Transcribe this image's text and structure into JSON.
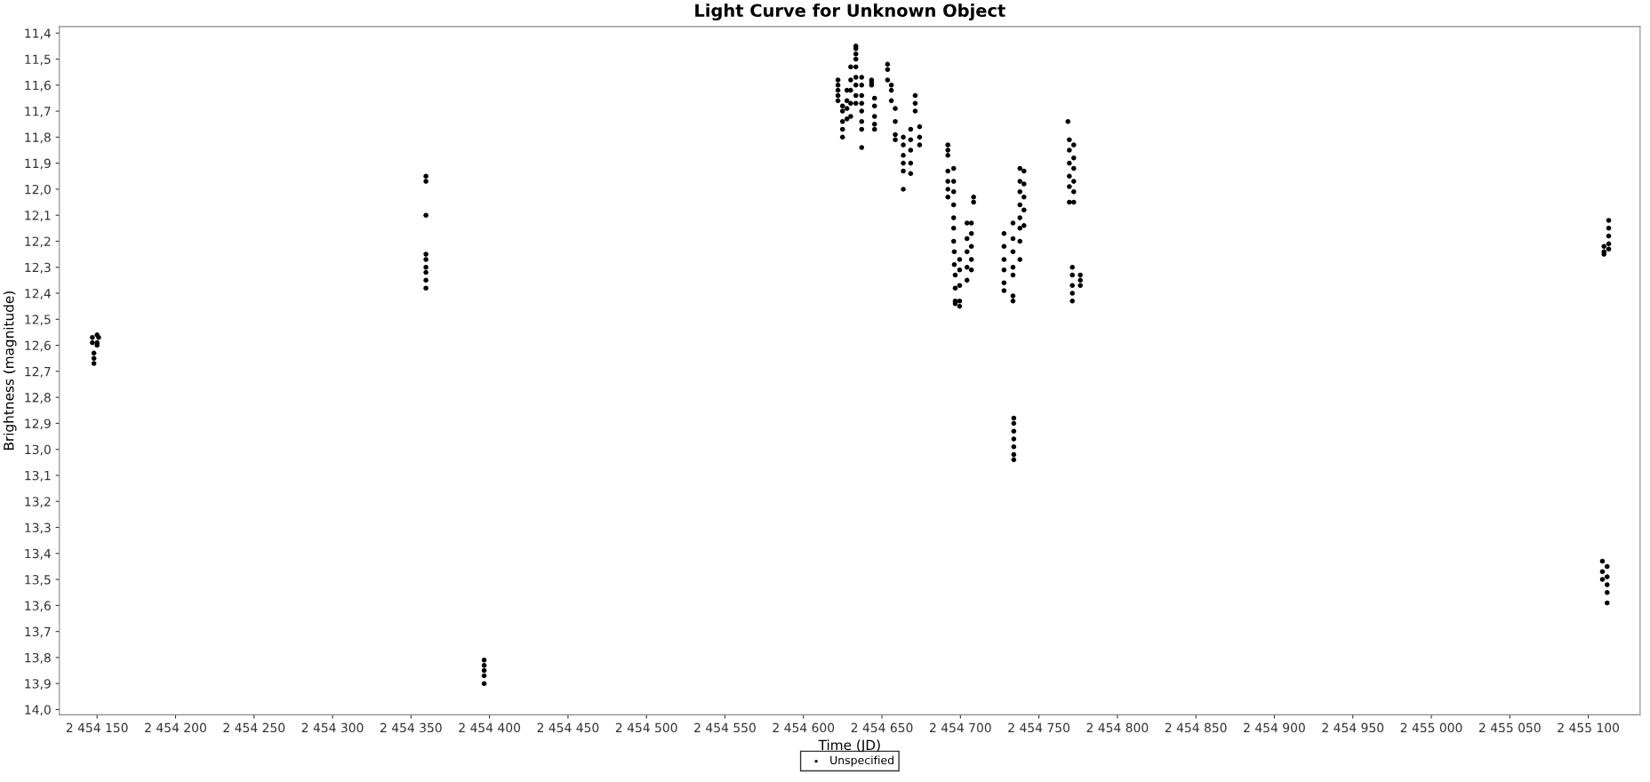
{
  "chart_data": {
    "type": "scatter",
    "title": "Light Curve for Unknown Object",
    "xlabel": "Time (JD)",
    "ylabel": "Brightness (magnitude)",
    "xlim": [
      2454126,
      2455133
    ],
    "ylim": [
      14.02,
      11.375
    ],
    "xticks": [
      {
        "value": 2454150,
        "label": "2 454 150"
      },
      {
        "value": 2454200,
        "label": "2 454 200"
      },
      {
        "value": 2454250,
        "label": "2 454 250"
      },
      {
        "value": 2454300,
        "label": "2 454 300"
      },
      {
        "value": 2454350,
        "label": "2 454 350"
      },
      {
        "value": 2454400,
        "label": "2 454 400"
      },
      {
        "value": 2454450,
        "label": "2 454 450"
      },
      {
        "value": 2454500,
        "label": "2 454 500"
      },
      {
        "value": 2454550,
        "label": "2 454 550"
      },
      {
        "value": 2454600,
        "label": "2 454 600"
      },
      {
        "value": 2454650,
        "label": "2 454 650"
      },
      {
        "value": 2454700,
        "label": "2 454 700"
      },
      {
        "value": 2454750,
        "label": "2 454 750"
      },
      {
        "value": 2454800,
        "label": "2 454 800"
      },
      {
        "value": 2454850,
        "label": "2 454 850"
      },
      {
        "value": 2454900,
        "label": "2 454 900"
      },
      {
        "value": 2454950,
        "label": "2 454 950"
      },
      {
        "value": 2455000,
        "label": "2 455 000"
      },
      {
        "value": 2455050,
        "label": "2 455 050"
      },
      {
        "value": 2455100,
        "label": "2 455 100"
      }
    ],
    "yticks": [
      {
        "value": 11.4,
        "label": "11,4"
      },
      {
        "value": 11.5,
        "label": "11,5"
      },
      {
        "value": 11.6,
        "label": "11,6"
      },
      {
        "value": 11.7,
        "label": "11,7"
      },
      {
        "value": 11.8,
        "label": "11,8"
      },
      {
        "value": 11.9,
        "label": "11,9"
      },
      {
        "value": 12.0,
        "label": "12,0"
      },
      {
        "value": 12.1,
        "label": "12,1"
      },
      {
        "value": 12.2,
        "label": "12,2"
      },
      {
        "value": 12.3,
        "label": "12,3"
      },
      {
        "value": 12.4,
        "label": "12,4"
      },
      {
        "value": 12.5,
        "label": "12,5"
      },
      {
        "value": 12.6,
        "label": "12,6"
      },
      {
        "value": 12.7,
        "label": "12,7"
      },
      {
        "value": 12.8,
        "label": "12,8"
      },
      {
        "value": 12.9,
        "label": "12,9"
      },
      {
        "value": 13.0,
        "label": "13,0"
      },
      {
        "value": 13.1,
        "label": "13,1"
      },
      {
        "value": 13.2,
        "label": "13,2"
      },
      {
        "value": 13.3,
        "label": "13,3"
      },
      {
        "value": 13.4,
        "label": "13,4"
      },
      {
        "value": 13.5,
        "label": "13,5"
      },
      {
        "value": 13.6,
        "label": "13,6"
      },
      {
        "value": 13.7,
        "label": "13,7"
      },
      {
        "value": 13.8,
        "label": "13,8"
      },
      {
        "value": 13.9,
        "label": "13,9"
      },
      {
        "value": 14.0,
        "label": "14,0"
      }
    ],
    "grid": false,
    "legend": "bottom",
    "marker": "circle",
    "series": [
      {
        "name": "Unspecified",
        "color": "#000000",
        "x": [
          2454147,
          2454147,
          2454148,
          2454148,
          2454148,
          2454150,
          2454151,
          2454150,
          2454150,
          2454359.5,
          2454359.5,
          2454359.5,
          2454359.5,
          2454359.5,
          2454359.5,
          2454359.5,
          2454359.5,
          2454359.5,
          2454396.6,
          2454396.6,
          2454396.6,
          2454396.6,
          2454396.6,
          2454622,
          2454622,
          2454622,
          2454622,
          2454622,
          2454624.9,
          2454624.9,
          2454624.9,
          2454624.9,
          2454624.9,
          2454627.7,
          2454627.7,
          2454627.7,
          2454627.7,
          2454630.1,
          2454630.1,
          2454630.1,
          2454630.1,
          2454630.1,
          2454633.4,
          2454633.4,
          2454633.4,
          2454633.4,
          2454633.4,
          2454633.4,
          2454633.4,
          2454633.4,
          2454633.4,
          2454637.1,
          2454637.1,
          2454637.1,
          2454637.1,
          2454637.1,
          2454637.1,
          2454637.1,
          2454637.1,
          2454643.4,
          2454643.4,
          2454643.4,
          2454645.3,
          2454645.3,
          2454645.3,
          2454645.3,
          2454645.3,
          2454653.6,
          2454653.6,
          2454653.6,
          2454656,
          2454656,
          2454656,
          2454658.5,
          2454658.5,
          2454658.5,
          2454658.5,
          2454663.6,
          2454663.6,
          2454663.6,
          2454663.6,
          2454663.6,
          2454663.6,
          2454668.3,
          2454668.3,
          2454668.3,
          2454668.3,
          2454668.3,
          2454671.2,
          2454671.2,
          2454671.2,
          2454674,
          2454674,
          2454674,
          2454692,
          2454692,
          2454692,
          2454692,
          2454692,
          2454692,
          2454692,
          2454695.7,
          2454695.7,
          2454695.7,
          2454695.7,
          2454695.7,
          2454695.7,
          2454695.7,
          2454696.1,
          2454696.1,
          2454696.7,
          2454696.7,
          2454696.7,
          2454696.7,
          2454699.5,
          2454699.5,
          2454699.5,
          2454699.5,
          2454699.5,
          2454704.2,
          2454704.2,
          2454704.2,
          2454704.2,
          2454704.2,
          2454707,
          2454707,
          2454707,
          2454707,
          2454707,
          2454708.4,
          2454708.4,
          2454727.8,
          2454727.8,
          2454727.8,
          2454727.8,
          2454727.8,
          2454727.8,
          2454733.5,
          2454733.5,
          2454733.5,
          2454733.5,
          2454733.5,
          2454733.5,
          2454733.5,
          2454734,
          2454734,
          2454734,
          2454734,
          2454734,
          2454734,
          2454734,
          2454737.9,
          2454737.9,
          2454737.9,
          2454737.9,
          2454737.9,
          2454737.9,
          2454737.9,
          2454737.9,
          2454740.5,
          2454740.5,
          2454740.5,
          2454740.5,
          2454740.5,
          2454768.5,
          2454769.4,
          2454769.4,
          2454769.4,
          2454769.4,
          2454769.4,
          2454769.4,
          2454772.2,
          2454772.2,
          2454772.2,
          2454772.2,
          2454772.2,
          2454772.2,
          2454771.3,
          2454771.3,
          2454771.3,
          2454771.3,
          2454771.3,
          2454776.4,
          2454776.4,
          2454776.4,
          2455110,
          2455110,
          2455110,
          2455113,
          2455113,
          2455113,
          2455113,
          2455113,
          2455109,
          2455109,
          2455109,
          2455112,
          2455112,
          2455112,
          2455112,
          2455112
        ],
        "values": [
          12.57,
          12.59,
          12.63,
          12.65,
          12.67,
          12.56,
          12.57,
          12.59,
          12.6,
          11.95,
          11.97,
          12.1,
          12.25,
          12.27,
          12.3,
          12.32,
          12.35,
          12.38,
          13.81,
          13.83,
          13.85,
          13.87,
          13.9,
          11.58,
          11.6,
          11.62,
          11.64,
          11.66,
          11.68,
          11.7,
          11.74,
          11.77,
          11.8,
          11.62,
          11.66,
          11.69,
          11.73,
          11.53,
          11.58,
          11.62,
          11.67,
          11.72,
          11.45,
          11.46,
          11.48,
          11.5,
          11.53,
          11.57,
          11.6,
          11.64,
          11.67,
          11.57,
          11.6,
          11.64,
          11.67,
          11.7,
          11.74,
          11.77,
          11.84,
          11.58,
          11.59,
          11.6,
          11.65,
          11.68,
          11.72,
          11.75,
          11.77,
          11.52,
          11.54,
          11.58,
          11.6,
          11.62,
          11.66,
          11.69,
          11.74,
          11.79,
          11.81,
          11.8,
          11.83,
          11.87,
          11.9,
          11.93,
          12.0,
          11.77,
          11.81,
          11.85,
          11.9,
          11.94,
          11.64,
          11.67,
          11.7,
          11.76,
          11.8,
          11.83,
          11.83,
          11.85,
          11.87,
          11.93,
          11.97,
          12.0,
          12.03,
          11.92,
          11.97,
          12.01,
          12.06,
          12.11,
          12.15,
          12.2,
          12.24,
          12.29,
          12.33,
          12.38,
          12.43,
          12.44,
          12.27,
          12.31,
          12.37,
          12.43,
          12.45,
          12.13,
          12.19,
          12.24,
          12.3,
          12.35,
          12.13,
          12.17,
          12.22,
          12.27,
          12.31,
          12.03,
          12.05,
          12.17,
          12.22,
          12.27,
          12.31,
          12.36,
          12.39,
          12.13,
          12.19,
          12.24,
          12.3,
          12.33,
          12.41,
          12.43,
          12.88,
          12.9,
          12.93,
          12.96,
          12.99,
          13.02,
          13.04,
          11.92,
          11.97,
          12.01,
          12.06,
          12.11,
          12.15,
          12.2,
          12.27,
          11.93,
          11.98,
          12.03,
          12.08,
          12.14,
          11.74,
          11.81,
          11.85,
          11.9,
          11.95,
          11.99,
          12.05,
          11.83,
          11.88,
          11.92,
          11.97,
          12.01,
          12.05,
          12.3,
          12.33,
          12.37,
          12.4,
          12.43,
          12.33,
          12.35,
          12.37,
          12.22,
          12.24,
          12.25,
          12.12,
          12.15,
          12.18,
          12.21,
          12.23,
          13.43,
          13.47,
          13.5,
          13.45,
          13.49,
          13.52,
          13.55,
          13.59
        ]
      }
    ]
  }
}
